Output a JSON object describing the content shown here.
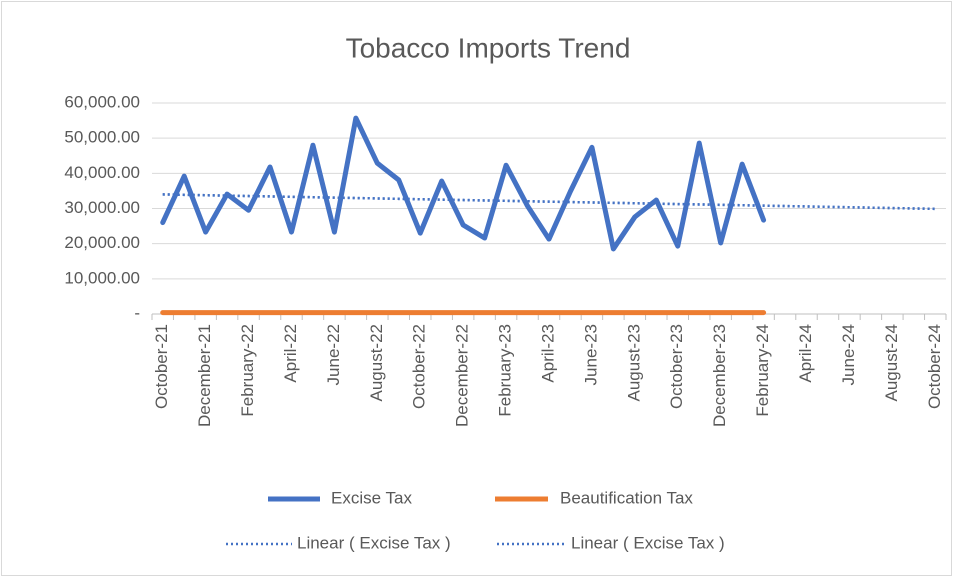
{
  "chart_data": {
    "type": "line",
    "title": "Tobacco Imports Trend",
    "categories": [
      "October-21",
      null,
      "December-21",
      null,
      "February-22",
      null,
      "April-22",
      null,
      "June-22",
      null,
      "August-22",
      null,
      "October-22",
      null,
      "December-22",
      null,
      "February-23",
      null,
      "April-23",
      null,
      "June-23",
      null,
      "August-23",
      null,
      "October-23",
      null,
      "December-23",
      null,
      "February-24",
      null,
      "April-24",
      null,
      "June-24",
      null,
      "August-24",
      null,
      "October-24"
    ],
    "series": [
      {
        "name": "Excise Tax",
        "color": "#4472c4",
        "style": "solid",
        "values": [
          26000,
          39200,
          23300,
          34100,
          29500,
          41800,
          23300,
          48000,
          23300,
          55700,
          42900,
          38100,
          23000,
          37800,
          25300,
          21600,
          42300,
          30700,
          21300,
          34900,
          47400,
          18500,
          27600,
          32400,
          19300,
          48600,
          20200,
          42600,
          26700,
          null,
          null,
          null,
          null,
          null,
          null,
          null,
          null
        ]
      },
      {
        "name": "Beautification Tax",
        "color": "#ed7d31",
        "style": "solid",
        "values": [
          400,
          400,
          400,
          400,
          400,
          400,
          400,
          400,
          400,
          400,
          400,
          400,
          400,
          400,
          400,
          400,
          400,
          400,
          400,
          400,
          400,
          400,
          400,
          400,
          400,
          400,
          400,
          400,
          400,
          null,
          null,
          null,
          null,
          null,
          null,
          null,
          null
        ]
      },
      {
        "name": "Linear ( Excise Tax )",
        "color": "#4472c4",
        "style": "dotted",
        "values": [
          34000,
          33890,
          33770,
          33660,
          33540,
          33430,
          33320,
          33200,
          33090,
          32970,
          32860,
          32750,
          32630,
          32520,
          32400,
          32290,
          32180,
          32060,
          31950,
          31830,
          31720,
          31610,
          31490,
          31380,
          31260,
          31150,
          31040,
          30920,
          30810,
          30690,
          30580,
          30470,
          30350,
          30240,
          30120,
          30010,
          29900
        ]
      },
      {
        "name": "Linear ( Excise Tax )",
        "color": "#4472c4",
        "style": "dotted",
        "values": [
          34000,
          33890,
          33770,
          33660,
          33540,
          33430,
          33320,
          33200,
          33090,
          32970,
          32860,
          32750,
          32630,
          32520,
          32400,
          32290,
          32180,
          32060,
          31950,
          31830,
          31720,
          31610,
          31490,
          31380,
          31260,
          31150,
          31040,
          30920,
          30810,
          30690,
          30580,
          30470,
          30350,
          30240,
          30120,
          30010,
          29900
        ]
      }
    ],
    "ylim": [
      0,
      60000
    ],
    "yticks": [
      {
        "value": 0,
        "label": "-"
      },
      {
        "value": 10000,
        "label": "10,000.00"
      },
      {
        "value": 20000,
        "label": "20,000.00"
      },
      {
        "value": 30000,
        "label": "30,000.00"
      },
      {
        "value": 40000,
        "label": "40,000.00"
      },
      {
        "value": 50000,
        "label": "50,000.00"
      },
      {
        "value": 60000,
        "label": "60,000.00"
      }
    ],
    "grid": true,
    "legend": "bottom"
  }
}
